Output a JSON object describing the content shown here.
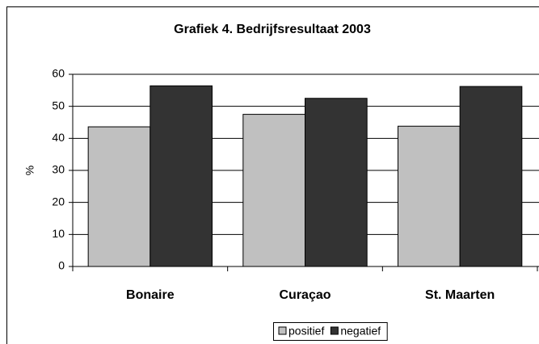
{
  "chart_data": {
    "type": "bar",
    "title": "Grafiek 4. Bedrijfsresultaat 2003",
    "y_label": "%",
    "categories": [
      "Bonaire",
      "Curaçao",
      "St. Maarten"
    ],
    "series": [
      {
        "name": "positief",
        "color": "#c0c0c0",
        "values": [
          43.6,
          47.5,
          43.8
        ]
      },
      {
        "name": "negatief",
        "color": "#333333",
        "values": [
          56.4,
          52.5,
          56.2
        ]
      }
    ],
    "ylim": [
      0,
      60
    ],
    "yticks": [
      0,
      10,
      20,
      30,
      40,
      50,
      60
    ],
    "grid": true,
    "legend": "bottom"
  }
}
